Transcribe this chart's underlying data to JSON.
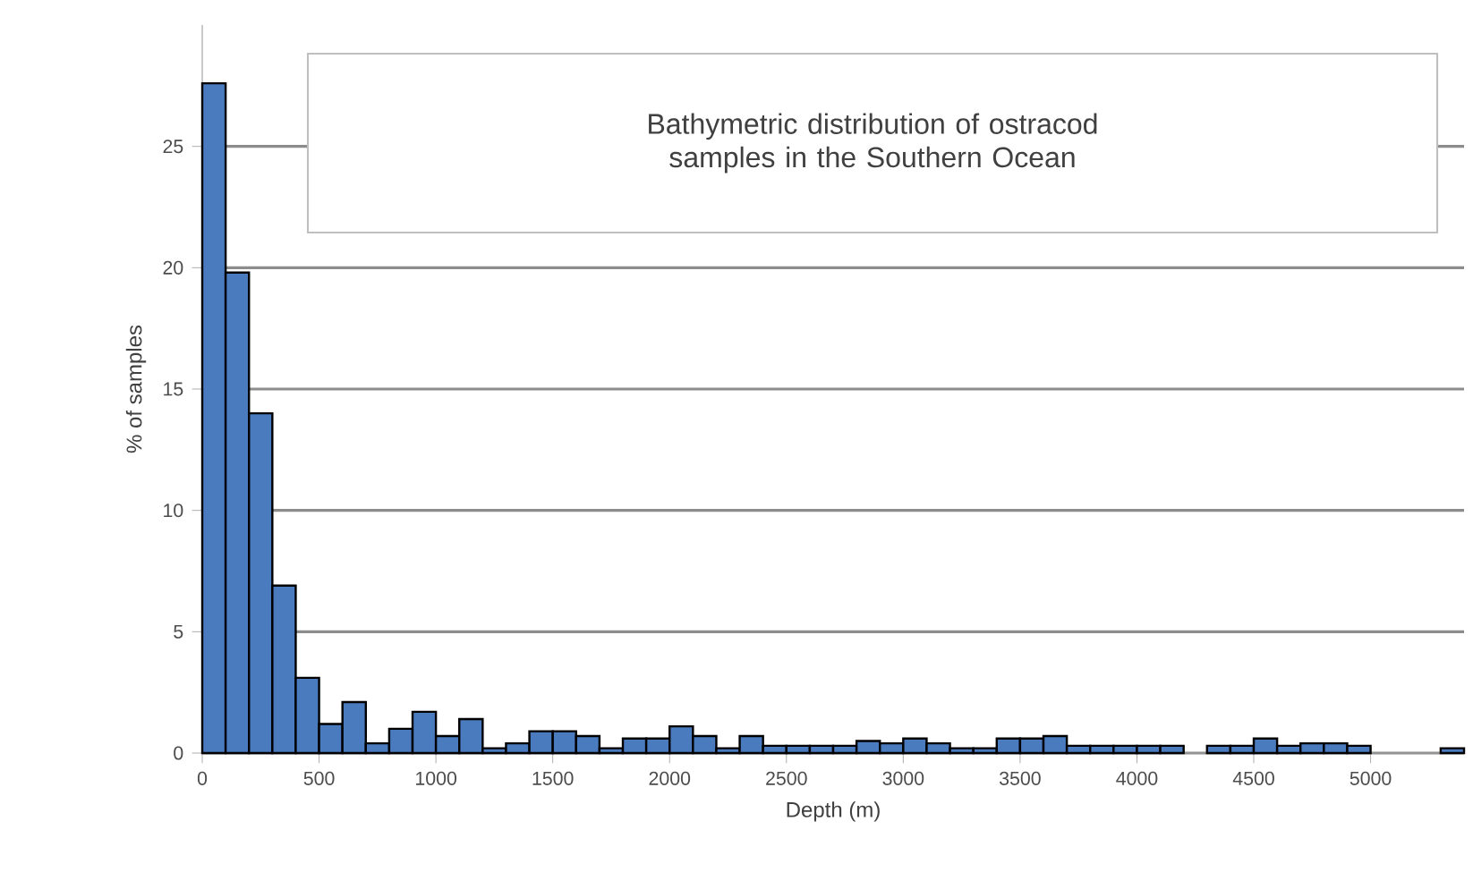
{
  "chart_data": {
    "type": "histogram",
    "title": "Bathymetric distribution of ostracod samples in the Southern Ocean",
    "xlabel": "Depth (m)",
    "ylabel": "% of samples",
    "color": "#4a7bbf",
    "bins": [
      0,
      100,
      200,
      300,
      400,
      500,
      600,
      700,
      800,
      900,
      1000,
      1100,
      1200,
      1300,
      1400,
      1500,
      1600,
      1700,
      1800,
      1900,
      2000,
      2100,
      2200,
      2300,
      2400,
      2500,
      2600,
      2700,
      2800,
      2900,
      3000,
      3100,
      3200,
      3300,
      3400,
      3500,
      3600,
      3700,
      3800,
      3900,
      4000,
      4100,
      4200,
      4300,
      4400,
      4500,
      4600,
      4700,
      4800,
      4900,
      5000,
      5100,
      5200,
      5300,
      5400
    ],
    "values": [
      27.6,
      19.8,
      14.0,
      6.9,
      3.1,
      1.2,
      2.1,
      0.4,
      1.0,
      1.7,
      0.7,
      1.4,
      0.2,
      0.4,
      0.9,
      0.9,
      0.7,
      0.2,
      0.6,
      0.6,
      1.1,
      0.7,
      0.2,
      0.7,
      0.3,
      0.3,
      0.3,
      0.3,
      0.5,
      0.4,
      0.6,
      0.4,
      0.2,
      0.2,
      0.6,
      0.6,
      0.7,
      0.3,
      0.3,
      0.3,
      0.3,
      0.3,
      0,
      0.3,
      0.3,
      0.6,
      0.3,
      0.4,
      0.4,
      0.3,
      0,
      0,
      0,
      0.2
    ],
    "xlim": [
      0,
      5400
    ],
    "ylim": [
      0,
      30
    ],
    "xticks": [
      0,
      500,
      1000,
      1500,
      2000,
      2500,
      3000,
      3500,
      4000,
      4500,
      5000
    ],
    "yticks": [
      0,
      5,
      10,
      15,
      20,
      25
    ],
    "grid": "y"
  }
}
